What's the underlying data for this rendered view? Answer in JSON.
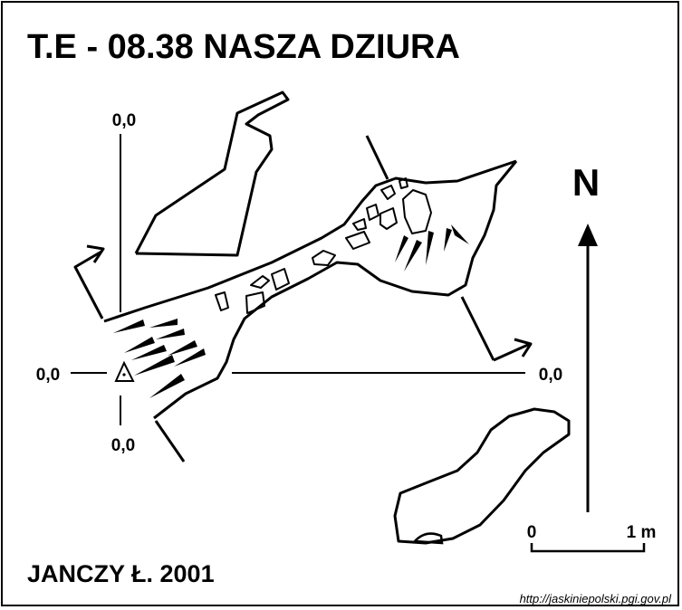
{
  "title": "T.E - 08.38  NASZA DZIURA",
  "author": "JANCZY Ł. 2001",
  "url": "http://jaskiniepolski.pgi.gov.pl",
  "north_label": "N",
  "scale": {
    "start_label": "0",
    "end_label": "1 m"
  },
  "section_markers": {
    "top": "0,0",
    "left": "0,0",
    "bottom": "0,0",
    "right": "0,0"
  }
}
